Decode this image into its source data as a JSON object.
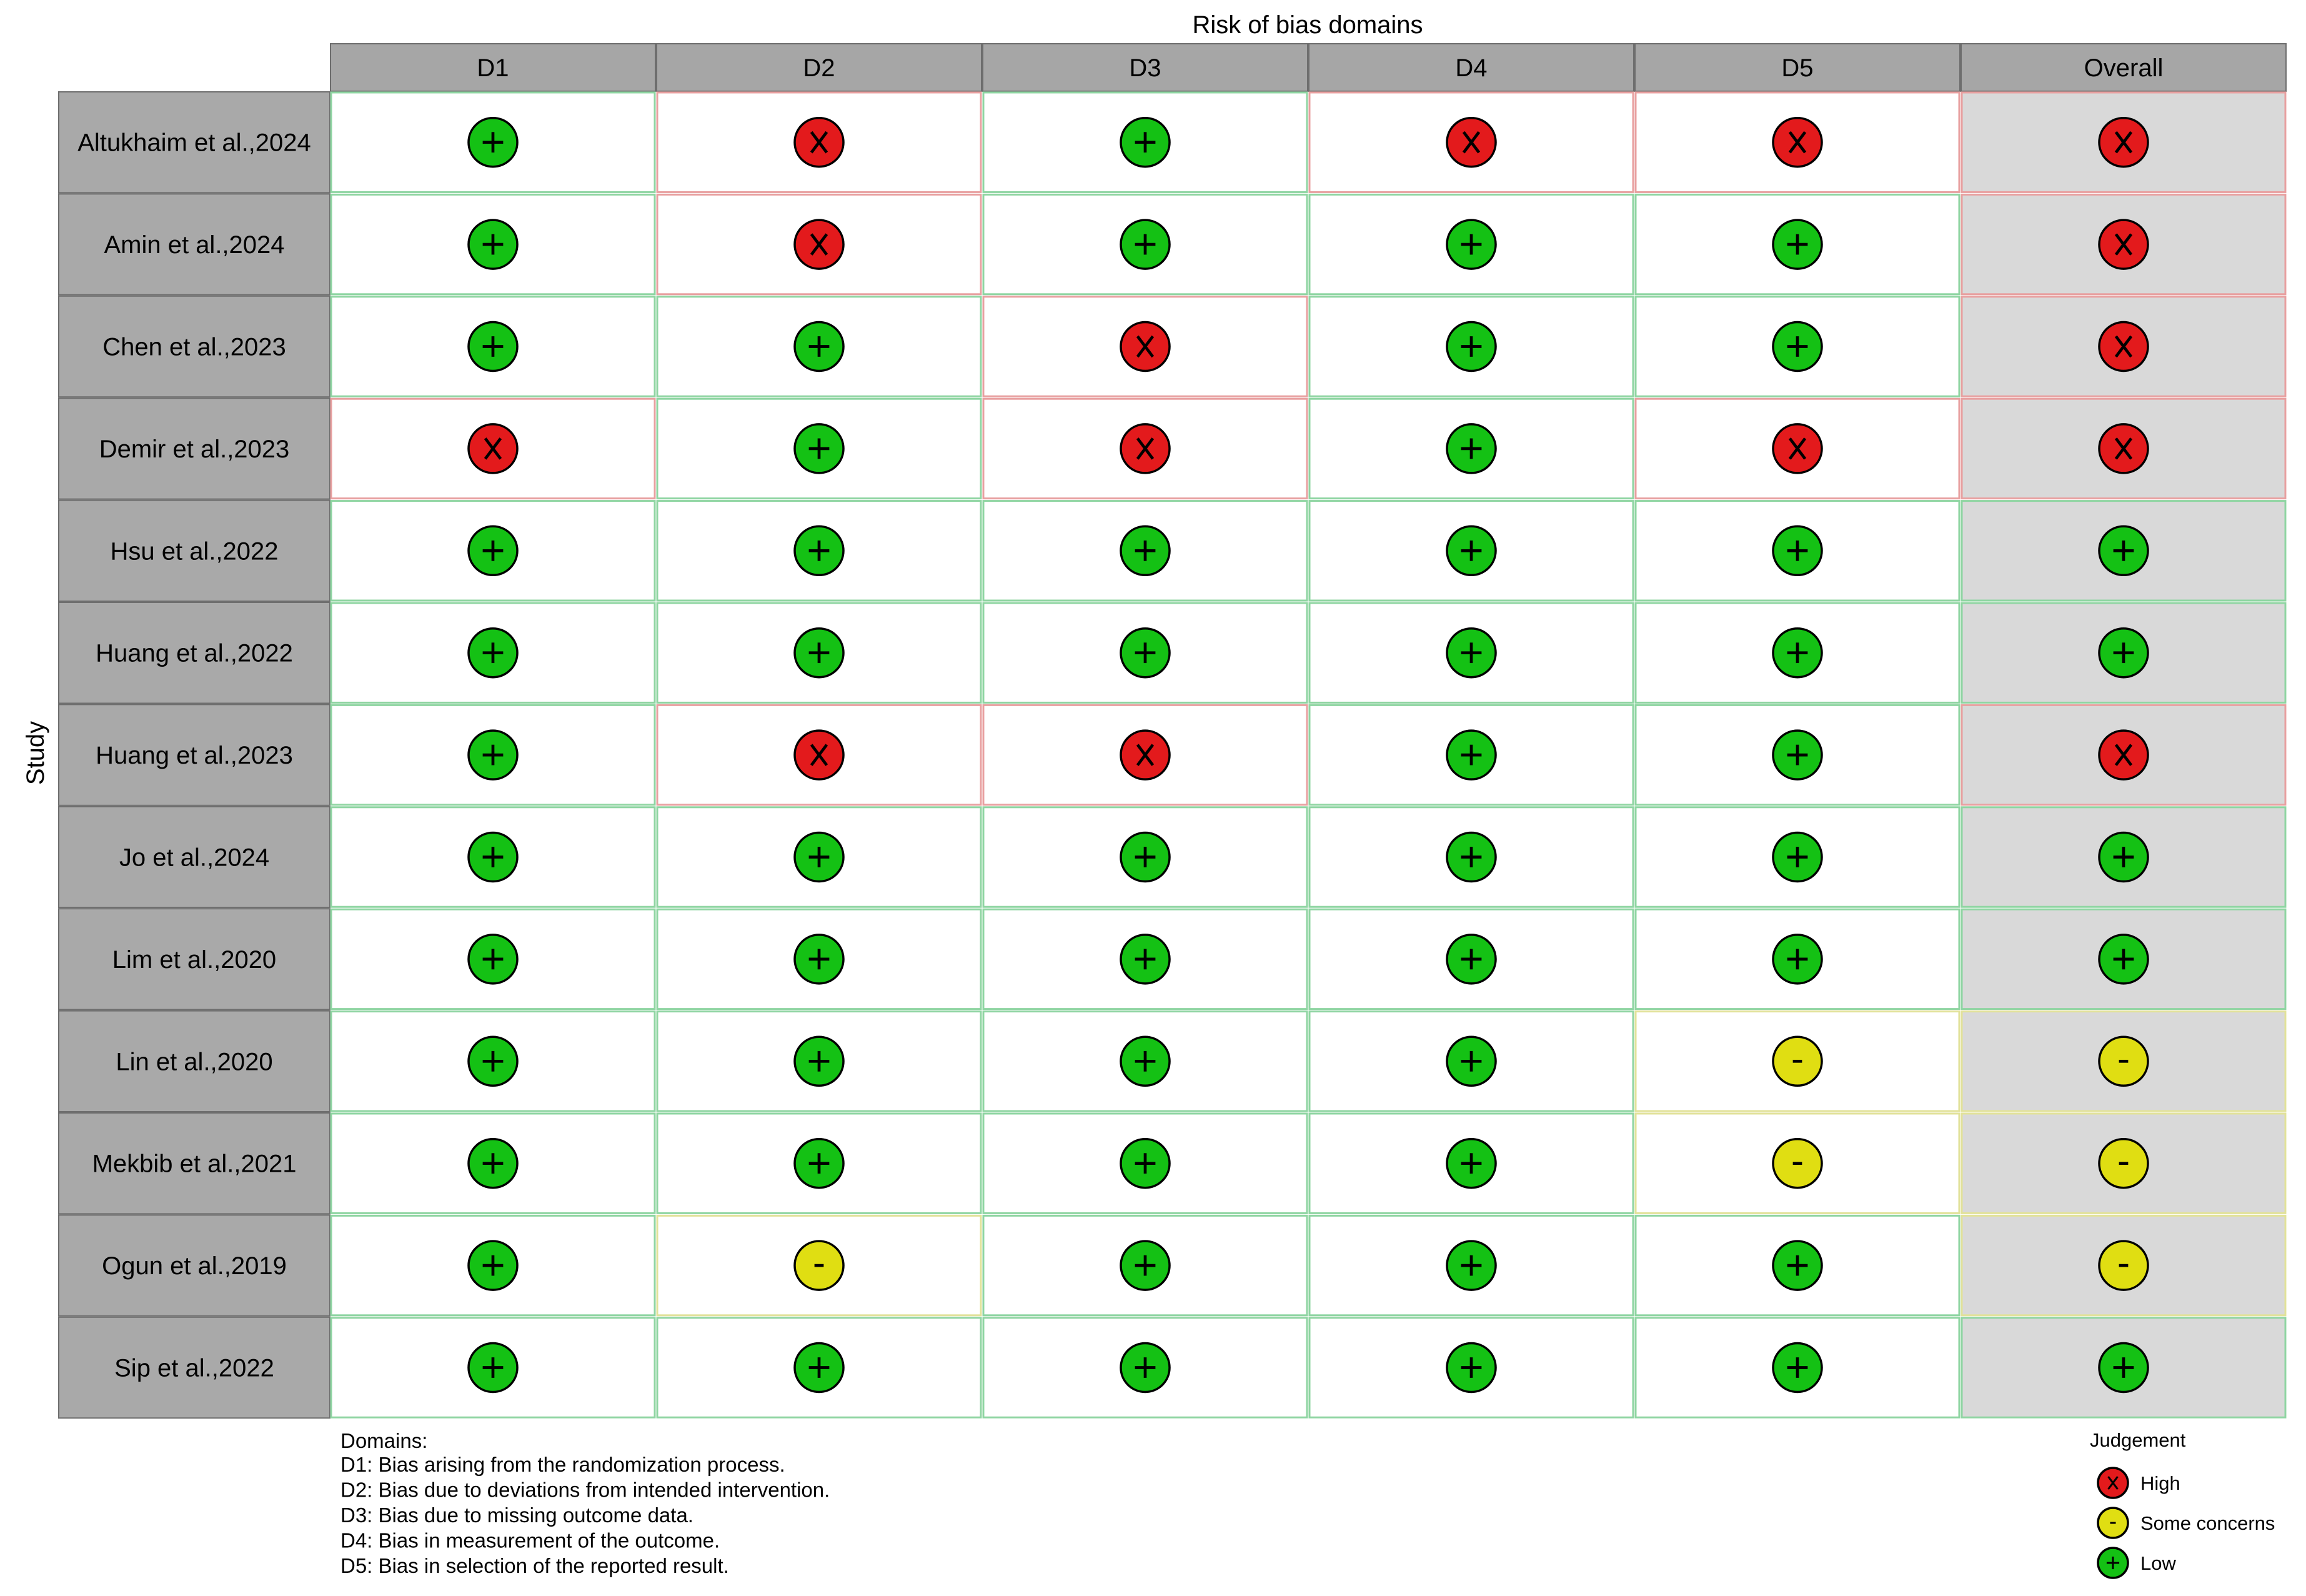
{
  "chart_data": {
    "type": "table",
    "title": "Risk of bias domains",
    "ylabel": "Study",
    "columns": [
      "D1",
      "D2",
      "D3",
      "D4",
      "D5",
      "Overall"
    ],
    "studies": [
      "Altukhaim et al.,2024",
      "Amin et al.,2024",
      "Chen et al.,2023",
      "Demir et al.,2023",
      "Hsu et al.,2022",
      "Huang et al.,2022",
      "Huang et al.,2023",
      "Jo et al.,2024",
      "Lim et al.,2020",
      "Lin et al.,2020",
      "Mekbib et al.,2021",
      "Ogun et al.,2019",
      "Sip et al.,2022"
    ],
    "judgements": [
      [
        "low",
        "high",
        "low",
        "high",
        "high",
        "high"
      ],
      [
        "low",
        "high",
        "low",
        "low",
        "low",
        "high"
      ],
      [
        "low",
        "low",
        "high",
        "low",
        "low",
        "high"
      ],
      [
        "high",
        "low",
        "high",
        "low",
        "high",
        "high"
      ],
      [
        "low",
        "low",
        "low",
        "low",
        "low",
        "low"
      ],
      [
        "low",
        "low",
        "low",
        "low",
        "low",
        "low"
      ],
      [
        "low",
        "high",
        "high",
        "low",
        "low",
        "high"
      ],
      [
        "low",
        "low",
        "low",
        "low",
        "low",
        "low"
      ],
      [
        "low",
        "low",
        "low",
        "low",
        "low",
        "low"
      ],
      [
        "low",
        "low",
        "low",
        "low",
        "some",
        "some"
      ],
      [
        "low",
        "low",
        "low",
        "low",
        "some",
        "some"
      ],
      [
        "low",
        "some",
        "low",
        "low",
        "low",
        "some"
      ],
      [
        "low",
        "low",
        "low",
        "low",
        "low",
        "low"
      ]
    ],
    "symbols": {
      "high": "X",
      "some": "-",
      "low": "+"
    },
    "colors": {
      "high": "#e31a1c",
      "some": "#e0de12",
      "low": "#14c114",
      "header_fill": "#a6a6a6",
      "study_fill": "#a9a9a9",
      "overall_fill": "#d9d9d9",
      "border_high": "#e8a0a0",
      "border_some": "#e2e29a",
      "border_low": "#8fd5a2"
    }
  },
  "domains_note": {
    "heading": "Domains:",
    "lines": [
      "D1: Bias arising from the randomization process.",
      "D2: Bias due to deviations from intended intervention.",
      "D3: Bias due to missing outcome data.",
      "D4: Bias in measurement of the outcome.",
      "D5: Bias in selection of the reported result."
    ]
  },
  "legend": {
    "title": "Judgement",
    "items": [
      {
        "key": "high",
        "label": "High"
      },
      {
        "key": "some",
        "label": "Some concerns"
      },
      {
        "key": "low",
        "label": "Low"
      }
    ]
  }
}
